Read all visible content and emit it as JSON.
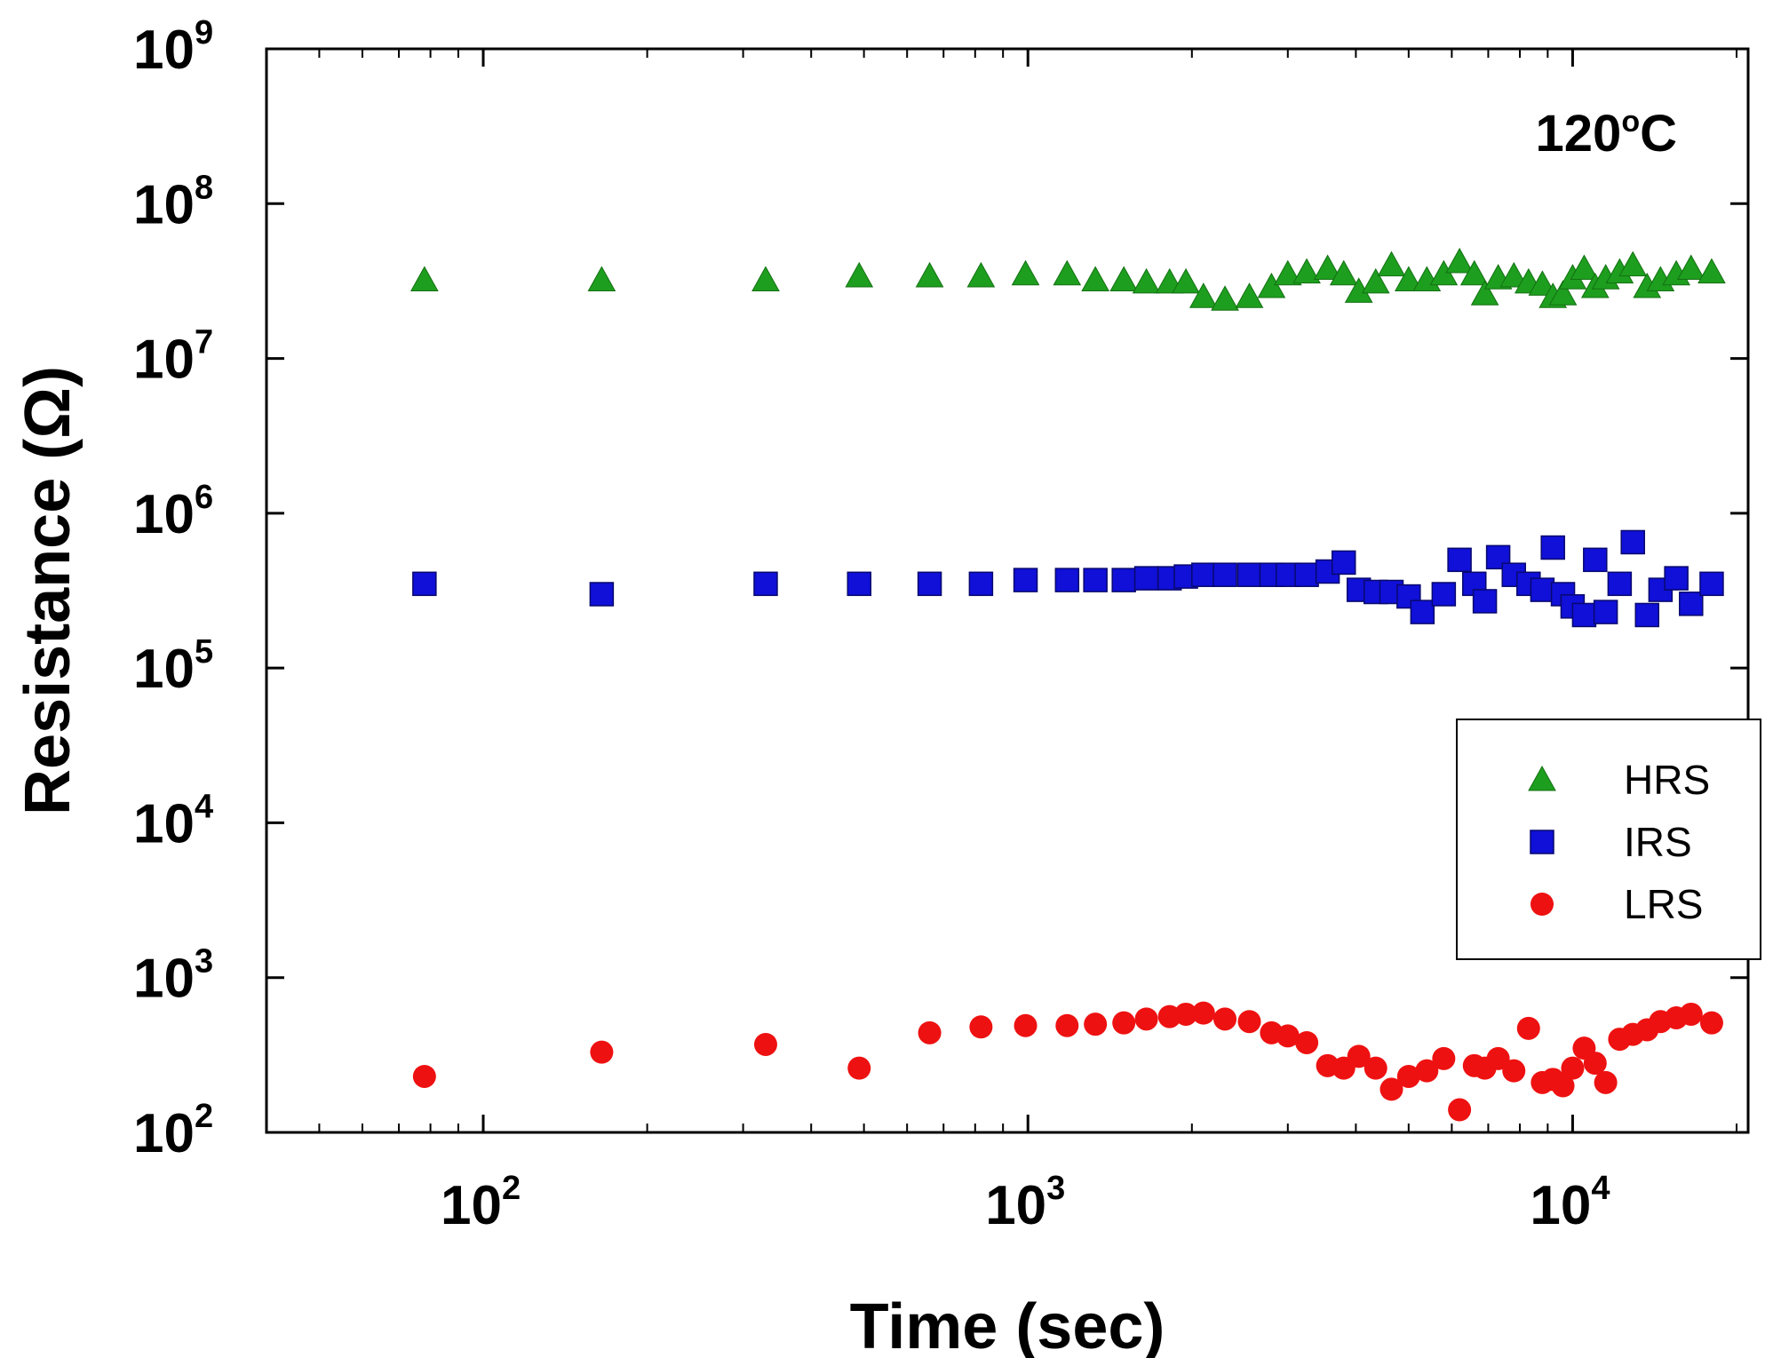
{
  "chart_data": {
    "type": "scatter",
    "title": "",
    "annotation": {
      "base": "120",
      "sup": "o",
      "tail": "C"
    },
    "xlabel": "Time (sec)",
    "ylabel": "Resistance (Ω)",
    "xscale": "log",
    "yscale": "log",
    "xlim": [
      40,
      21000
    ],
    "ylim": [
      100,
      1000000000
    ],
    "x_ticks": [
      {
        "base": "10",
        "exp": "2",
        "value": 100
      },
      {
        "base": "10",
        "exp": "3",
        "value": 1000
      },
      {
        "base": "10",
        "exp": "4",
        "value": 10000
      }
    ],
    "y_ticks": [
      {
        "base": "10",
        "exp": "2",
        "value": 100
      },
      {
        "base": "10",
        "exp": "3",
        "value": 1000
      },
      {
        "base": "10",
        "exp": "4",
        "value": 10000
      },
      {
        "base": "10",
        "exp": "5",
        "value": 100000
      },
      {
        "base": "10",
        "exp": "6",
        "value": 1000000
      },
      {
        "base": "10",
        "exp": "7",
        "value": 10000000
      },
      {
        "base": "10",
        "exp": "8",
        "value": 100000000
      },
      {
        "base": "10",
        "exp": "9",
        "value": 1000000000
      }
    ],
    "legend_position": "right",
    "series": [
      {
        "name": "HRS",
        "marker": "triangle",
        "color": "#1e9e1e",
        "points": [
          [
            78,
            32000000.0
          ],
          [
            165,
            32000000.0
          ],
          [
            330,
            32000000.0
          ],
          [
            490,
            34000000.0
          ],
          [
            660,
            34000000.0
          ],
          [
            820,
            34000000.0
          ],
          [
            990,
            35000000.0
          ],
          [
            1180,
            35000000.0
          ],
          [
            1330,
            32000000.0
          ],
          [
            1500,
            32000000.0
          ],
          [
            1650,
            31000000.0
          ],
          [
            1820,
            31000000.0
          ],
          [
            1950,
            31000000.0
          ],
          [
            2100,
            25000000.0
          ],
          [
            2300,
            24000000.0
          ],
          [
            2550,
            25000000.0
          ],
          [
            2800,
            29000000.0
          ],
          [
            3000,
            35000000.0
          ],
          [
            3250,
            36000000.0
          ],
          [
            3550,
            38000000.0
          ],
          [
            3800,
            35000000.0
          ],
          [
            4050,
            27000000.0
          ],
          [
            4350,
            31000000.0
          ],
          [
            4650,
            40000000.0
          ],
          [
            5000,
            32000000.0
          ],
          [
            5400,
            32000000.0
          ],
          [
            5800,
            35000000.0
          ],
          [
            6200,
            42000000.0
          ],
          [
            6600,
            35000000.0
          ],
          [
            6900,
            26000000.0
          ],
          [
            7300,
            33000000.0
          ],
          [
            7800,
            34000000.0
          ],
          [
            8300,
            31000000.0
          ],
          [
            8800,
            30000000.0
          ],
          [
            9200,
            25000000.0
          ],
          [
            9600,
            26000000.0
          ],
          [
            10000,
            33000000.0
          ],
          [
            10500,
            38000000.0
          ],
          [
            11000,
            29000000.0
          ],
          [
            11500,
            33000000.0
          ],
          [
            12200,
            36000000.0
          ],
          [
            12900,
            40000000.0
          ],
          [
            13700,
            29000000.0
          ],
          [
            14500,
            32000000.0
          ],
          [
            15500,
            35000000.0
          ],
          [
            16500,
            38000000.0
          ],
          [
            18000,
            36000000.0
          ]
        ]
      },
      {
        "name": "IRS",
        "marker": "square",
        "color": "#1010d8",
        "points": [
          [
            78,
            350000.0
          ],
          [
            165,
            300000.0
          ],
          [
            330,
            350000.0
          ],
          [
            490,
            350000.0
          ],
          [
            660,
            350000.0
          ],
          [
            820,
            350000.0
          ],
          [
            990,
            370000.0
          ],
          [
            1180,
            370000.0
          ],
          [
            1330,
            370000.0
          ],
          [
            1500,
            370000.0
          ],
          [
            1650,
            380000.0
          ],
          [
            1820,
            380000.0
          ],
          [
            1950,
            390000.0
          ],
          [
            2100,
            400000.0
          ],
          [
            2300,
            400000.0
          ],
          [
            2550,
            400000.0
          ],
          [
            2800,
            400000.0
          ],
          [
            3000,
            400000.0
          ],
          [
            3250,
            400000.0
          ],
          [
            3550,
            420000.0
          ],
          [
            3800,
            480000.0
          ],
          [
            4050,
            320000.0
          ],
          [
            4350,
            310000.0
          ],
          [
            4650,
            310000.0
          ],
          [
            5000,
            290000.0
          ],
          [
            5300,
            230000.0
          ],
          [
            5800,
            300000.0
          ],
          [
            6200,
            500000.0
          ],
          [
            6600,
            350000.0
          ],
          [
            6900,
            270000.0
          ],
          [
            7300,
            520000.0
          ],
          [
            7800,
            400000.0
          ],
          [
            8300,
            350000.0
          ],
          [
            8800,
            320000.0
          ],
          [
            9200,
            600000.0
          ],
          [
            9600,
            300000.0
          ],
          [
            10000,
            250000.0
          ],
          [
            10500,
            220000.0
          ],
          [
            11000,
            500000.0
          ],
          [
            11500,
            230000.0
          ],
          [
            12200,
            350000.0
          ],
          [
            12900,
            650000.0
          ],
          [
            13700,
            220000.0
          ],
          [
            14500,
            320000.0
          ],
          [
            15500,
            380000.0
          ],
          [
            16500,
            260000.0
          ],
          [
            18000,
            350000.0
          ]
        ]
      },
      {
        "name": "LRS",
        "marker": "circle",
        "color": "#ee1111",
        "points": [
          [
            78,
            230
          ],
          [
            165,
            330
          ],
          [
            330,
            370
          ],
          [
            490,
            260
          ],
          [
            660,
            440
          ],
          [
            820,
            480
          ],
          [
            990,
            490
          ],
          [
            1180,
            490
          ],
          [
            1330,
            500
          ],
          [
            1500,
            510
          ],
          [
            1650,
            540
          ],
          [
            1820,
            560
          ],
          [
            1950,
            580
          ],
          [
            2100,
            590
          ],
          [
            2300,
            540
          ],
          [
            2550,
            520
          ],
          [
            2800,
            440
          ],
          [
            3000,
            420
          ],
          [
            3250,
            380
          ],
          [
            3550,
            270
          ],
          [
            3800,
            260
          ],
          [
            4050,
            310
          ],
          [
            4350,
            260
          ],
          [
            4650,
            190
          ],
          [
            5000,
            230
          ],
          [
            5400,
            250
          ],
          [
            5800,
            300
          ],
          [
            6200,
            140
          ],
          [
            6600,
            270
          ],
          [
            6900,
            260
          ],
          [
            7300,
            300
          ],
          [
            7800,
            250
          ],
          [
            8300,
            470
          ],
          [
            8800,
            210
          ],
          [
            9200,
            220
          ],
          [
            9600,
            200
          ],
          [
            10000,
            260
          ],
          [
            10500,
            350
          ],
          [
            11000,
            280
          ],
          [
            11500,
            210
          ],
          [
            12200,
            400
          ],
          [
            12900,
            430
          ],
          [
            13700,
            460
          ],
          [
            14500,
            520
          ],
          [
            15500,
            550
          ],
          [
            16500,
            580
          ],
          [
            18000,
            510
          ]
        ]
      }
    ]
  }
}
